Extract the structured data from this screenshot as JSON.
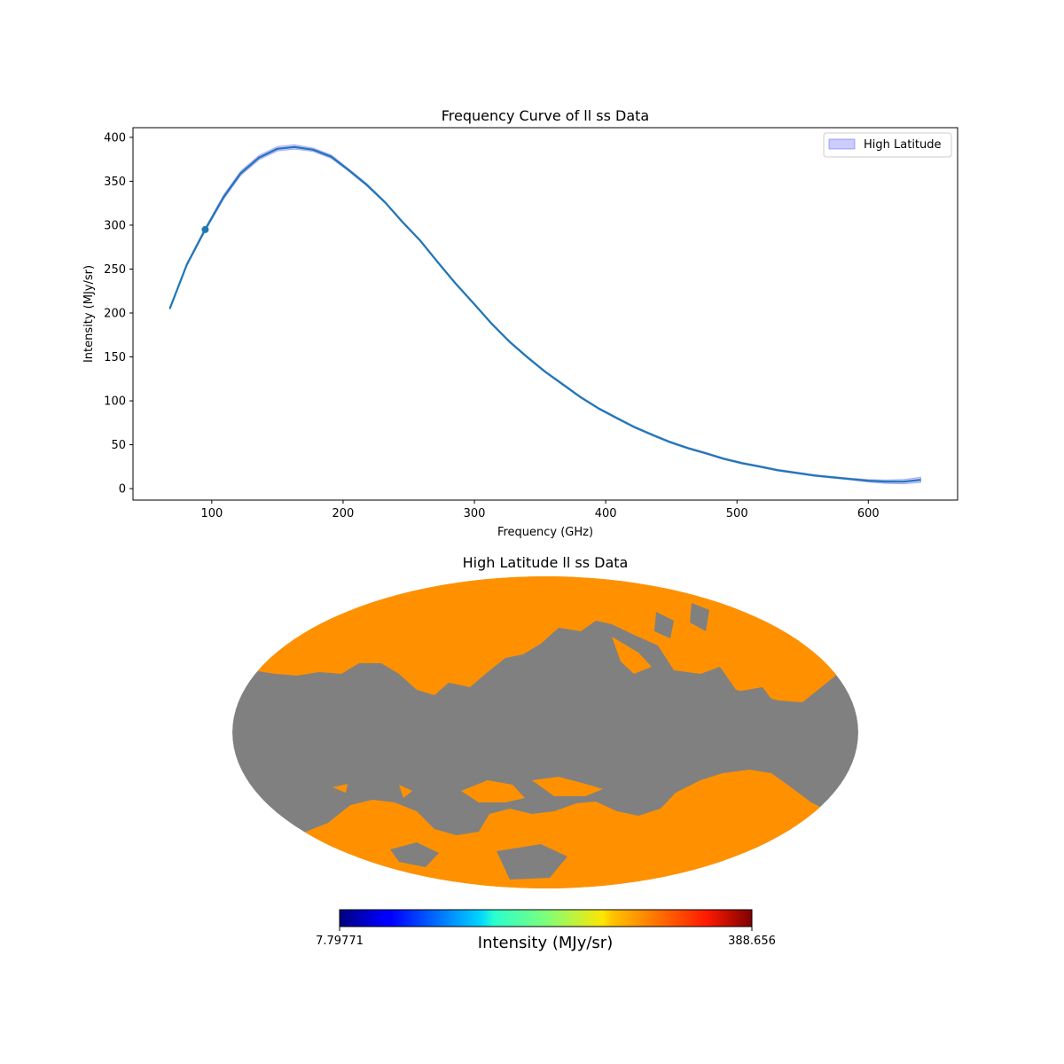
{
  "chart_data": [
    {
      "type": "line",
      "title": "Frequency Curve of ll ss Data",
      "xlabel": "Frequency (GHz)",
      "ylabel": "Intensity (MJy/sr)",
      "xlim": [
        40,
        668
      ],
      "ylim": [
        -13,
        411
      ],
      "xticks": [
        100,
        200,
        300,
        400,
        500,
        600
      ],
      "yticks": [
        0,
        50,
        100,
        150,
        200,
        250,
        300,
        350,
        400
      ],
      "grid": false,
      "legend": {
        "position": "top-right",
        "entries": [
          "High Latitude"
        ]
      },
      "series": [
        {
          "name": "High Latitude",
          "color": "#1f77b4",
          "band_color": "#0000ff",
          "x": [
            68,
            81,
            95,
            109,
            122,
            136,
            150,
            163,
            177,
            191,
            204,
            218,
            232,
            245,
            259,
            272,
            286,
            300,
            313,
            327,
            340,
            354,
            368,
            381,
            395,
            409,
            422,
            436,
            449,
            463,
            477,
            490,
            504,
            518,
            531,
            545,
            559,
            572,
            586,
            600,
            613,
            627,
            640
          ],
          "y": [
            205,
            255,
            295,
            332,
            359,
            377,
            387,
            389,
            386,
            378,
            363,
            346,
            326,
            304,
            282,
            258,
            233,
            210,
            188,
            167,
            150,
            133,
            118,
            104,
            91,
            80,
            70,
            61,
            53,
            46,
            40,
            34,
            29,
            25,
            21,
            18,
            15,
            13,
            11,
            9,
            8,
            8,
            10
          ],
          "band_half_width": [
            1.5,
            1.5,
            2,
            2.5,
            2.5,
            2.5,
            2.5,
            2.5,
            2,
            2,
            1.5,
            1.5,
            1,
            1,
            1,
            1,
            1,
            1,
            1,
            1,
            1,
            1,
            1,
            1,
            1,
            1,
            1,
            1,
            1,
            1,
            1,
            1,
            1,
            1,
            1,
            1,
            1,
            1,
            1,
            1.5,
            2,
            2.5,
            3
          ],
          "marker": {
            "x": 95,
            "y": 295
          }
        }
      ]
    },
    {
      "type": "heatmap",
      "title": "High Latitude ll ss Data",
      "projection": "mollweide",
      "colormap": "jet",
      "mask_color": "#808080",
      "region_color": "#ff9100",
      "colorbar": {
        "label": "Intensity (MJy/sr)",
        "min_label": "7.79771",
        "max_label": "388.656"
      }
    }
  ]
}
